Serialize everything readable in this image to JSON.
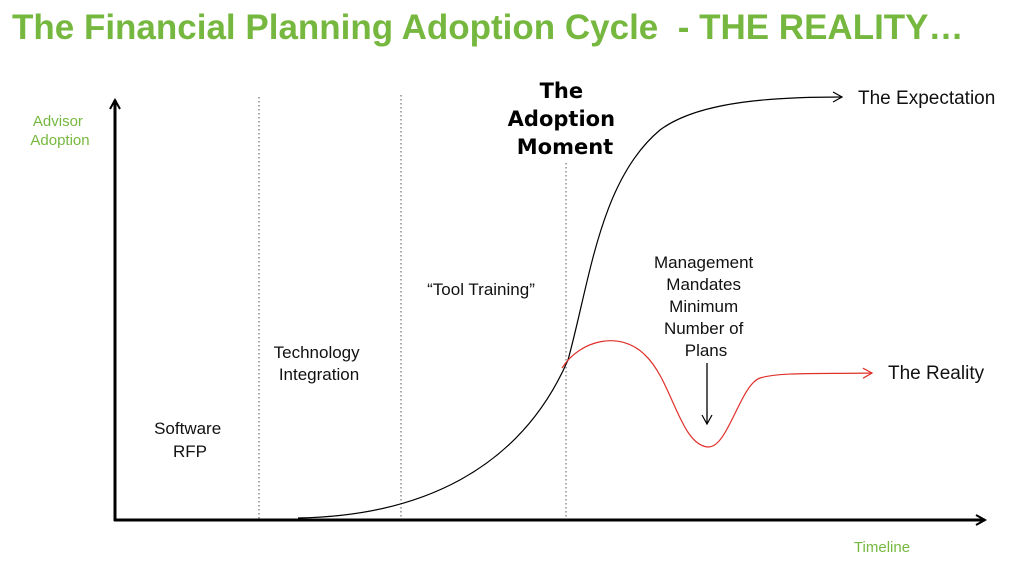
{
  "title": "The Financial Planning Adoption Cycle  - THE REALITY…",
  "colors": {
    "title": "#76b83f",
    "axis_label": "#76b83f",
    "expectation_curve": "#000000",
    "reality_curve": "#e0302a",
    "divider": "#555555"
  },
  "axes": {
    "y_label": [
      "Advisor",
      "Adoption"
    ],
    "x_label": "Timeline"
  },
  "phases": {
    "software_rfp": [
      "Software",
      "RFP"
    ],
    "technology_integration": [
      "Technology",
      "Integration"
    ],
    "tool_training": "“Tool Training”",
    "adoption_moment": [
      "The",
      "Adoption",
      "Moment"
    ]
  },
  "annotations": {
    "management": [
      "Management",
      "Mandates",
      "Minimum",
      "Number of",
      "Plans"
    ]
  },
  "curves": {
    "expectation": "The Expectation",
    "reality": "The Reality"
  }
}
